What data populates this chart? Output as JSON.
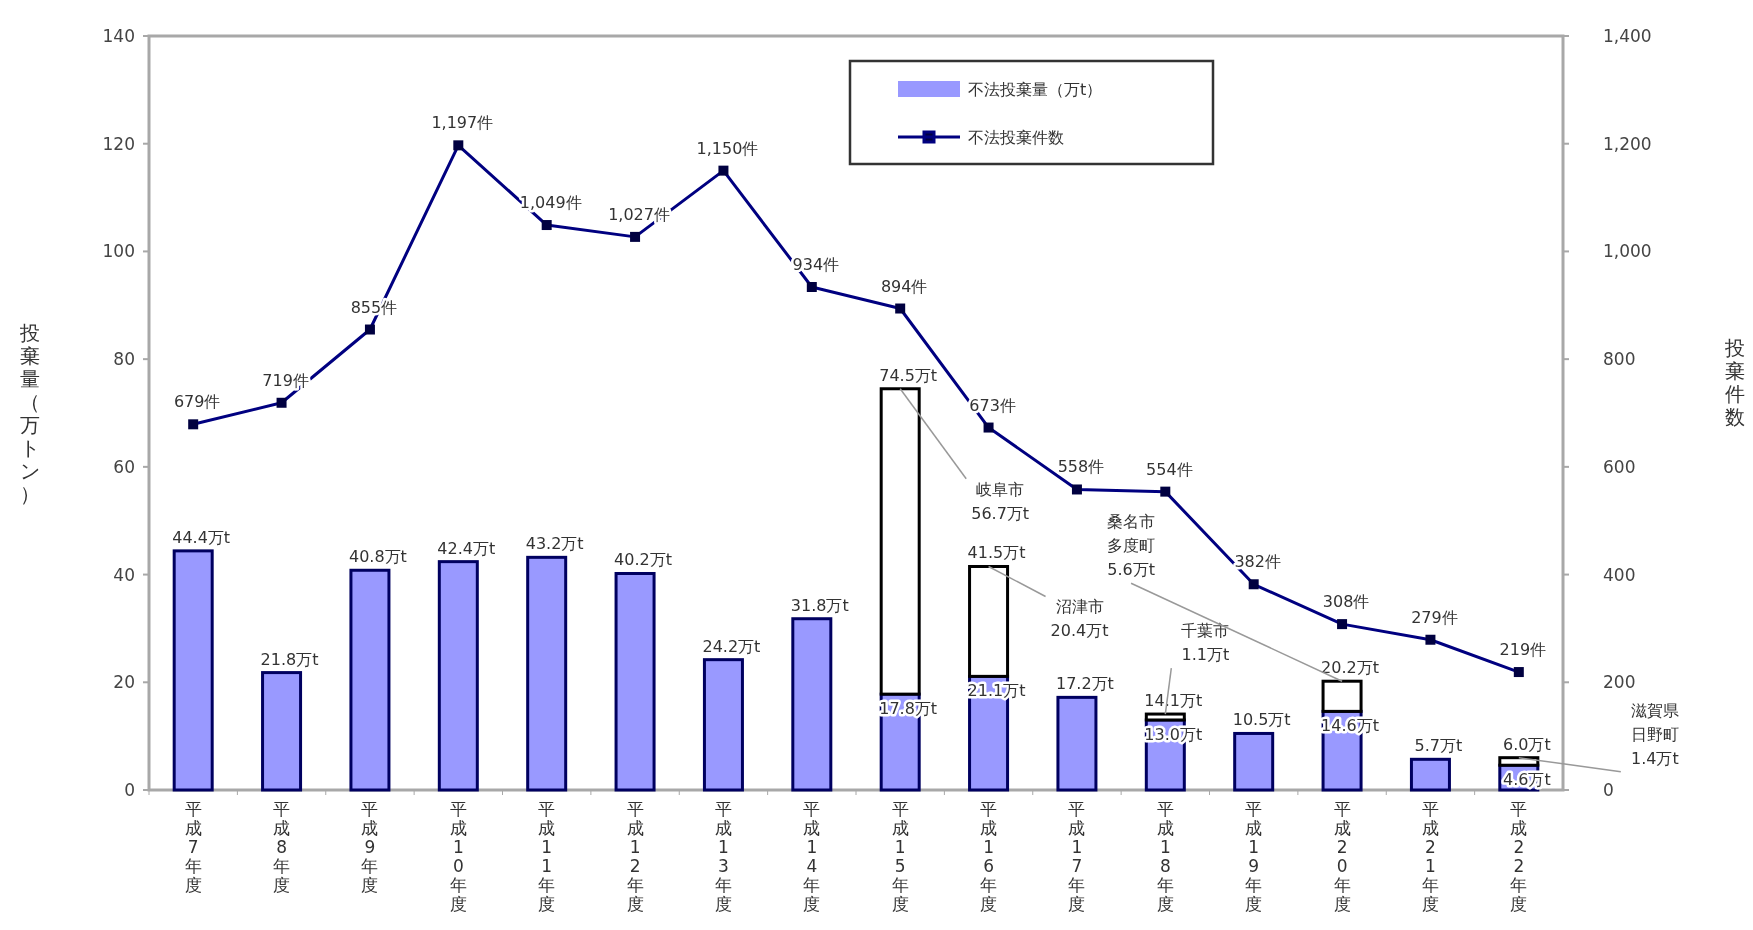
{
  "chart_data": {
    "type": "bar",
    "stacked": true,
    "categories": [
      "平成7年度",
      "平成8年度",
      "平成9年度",
      "平成10年度",
      "平成11年度",
      "平成12年度",
      "平成13年度",
      "平成14年度",
      "平成15年度",
      "平成16年度",
      "平成17年度",
      "平成18年度",
      "平成19年度",
      "平成20年度",
      "平成21年度",
      "平成22年度"
    ],
    "ylabel": "投棄量（万トン）",
    "y2label": "投棄件数",
    "ylim": [
      0,
      140
    ],
    "yticks": [
      0,
      20,
      40,
      60,
      80,
      100,
      120,
      140
    ],
    "y2lim": [
      0,
      1400
    ],
    "y2ticks": [
      0,
      200,
      400,
      600,
      800,
      {
        "value": 1000,
        "label": "1,000"
      },
      {
        "value": 1200,
        "label": "1,200"
      },
      {
        "value": 1400,
        "label": "1,400"
      }
    ],
    "legend": "top right",
    "marker": "square",
    "series": [
      {
        "name": "不法投棄量（万t）",
        "color": "#9999ff",
        "values": [
          44.4,
          21.8,
          40.8,
          42.4,
          43.2,
          40.2,
          24.2,
          31.8,
          17.8,
          21.1,
          17.2,
          13.0,
          10.5,
          14.6,
          5.7,
          4.6
        ],
        "value_labels": [
          "44.4万t",
          "21.8万t",
          "40.8万t",
          "42.4万t",
          "43.2万t",
          "40.2万t",
          "24.2万t",
          "31.8万t",
          "17.8万t",
          "21.1万t",
          "17.2万t",
          "13.0万t",
          "10.5万t",
          "14.6万t",
          "5.7万t",
          "4.6万t"
        ]
      },
      {
        "color": "#ffffff",
        "values": [
          null,
          null,
          null,
          null,
          null,
          null,
          null,
          null,
          56.7,
          20.4,
          null,
          1.1,
          null,
          5.6,
          null,
          1.4
        ]
      },
      {
        "name": "不法投棄件数",
        "type": "line",
        "axis": "y2",
        "color": "#000080",
        "values": [
          679,
          719,
          855,
          1197,
          1049,
          1027,
          1150,
          934,
          894,
          673,
          558,
          554,
          382,
          308,
          279,
          219
        ],
        "value_labels": [
          "679件",
          "719件",
          "855件",
          "1,197件",
          "1,049件",
          "1,027件",
          "1,150件",
          "934件",
          "894件",
          "673件",
          "558件",
          "554件",
          "382件",
          "308件",
          "279件",
          "219件"
        ]
      }
    ],
    "totals": [
      null,
      null,
      null,
      null,
      null,
      null,
      null,
      null,
      "74.5万t",
      "41.5万t",
      null,
      "14.1万t",
      null,
      "20.2万t",
      null,
      "6.0万t"
    ],
    "annotations": [
      {
        "text": "岐阜市56.7万t",
        "x": "平成15年度",
        "y": 74.5
      },
      {
        "text": "沼津市20.4万t",
        "x": "平成16年度",
        "y": 41.5
      },
      {
        "text": "千葉市1.1万t",
        "x": "平成18年度",
        "y": 14.1
      },
      {
        "text": "桑名市多度町5.6万t",
        "x": "平成20年度",
        "y": 20.2
      },
      {
        "text": "滋賀県日野町1.4万t",
        "x": "平成22年度",
        "y": 6.0
      }
    ]
  }
}
